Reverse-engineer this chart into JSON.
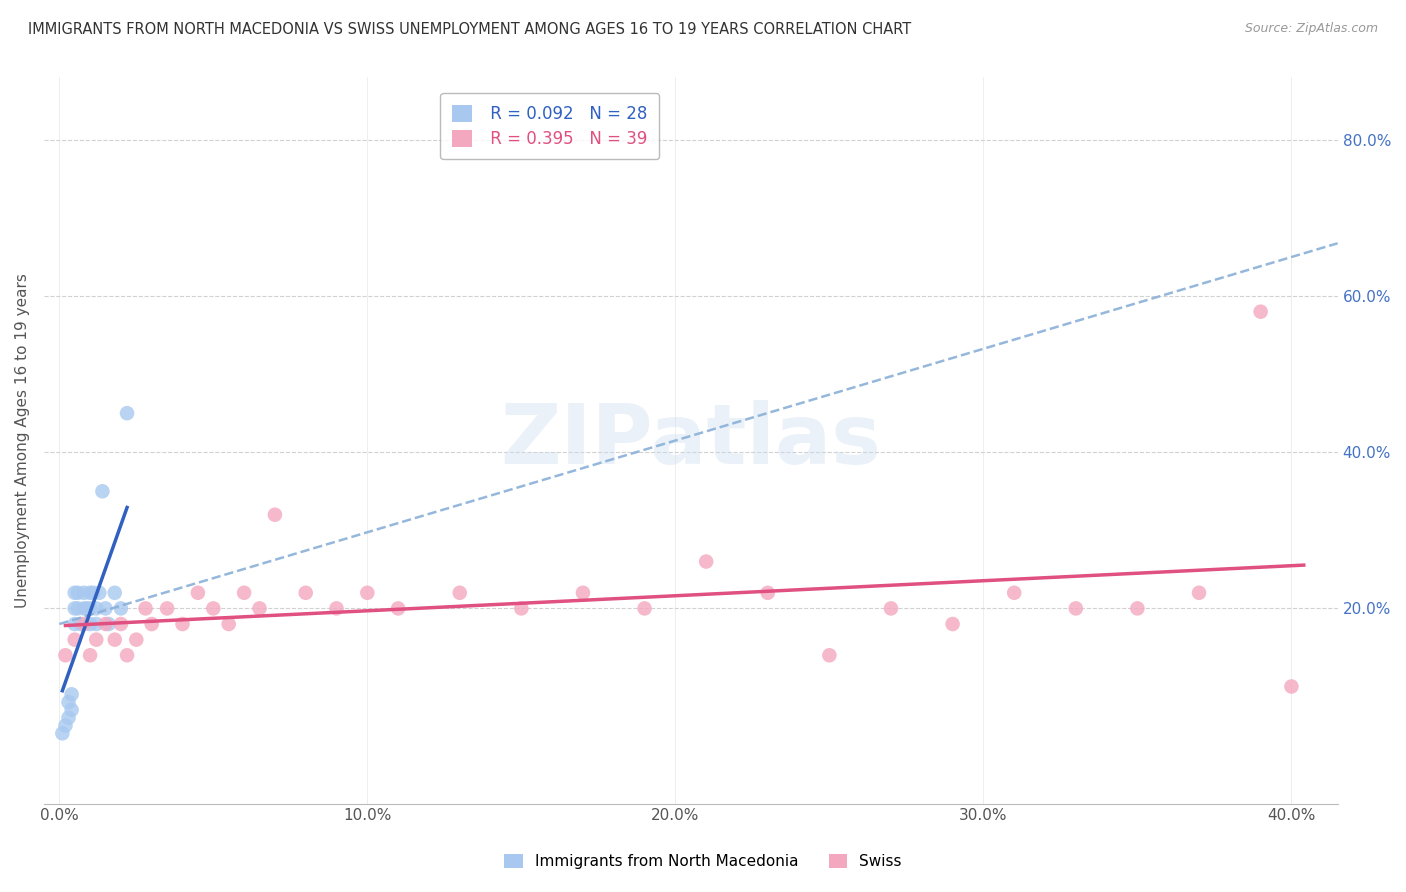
{
  "title": "IMMIGRANTS FROM NORTH MACEDONIA VS SWISS UNEMPLOYMENT AMONG AGES 16 TO 19 YEARS CORRELATION CHART",
  "source": "Source: ZipAtlas.com",
  "xlabel_ticks": [
    "0.0%",
    "10.0%",
    "20.0%",
    "30.0%",
    "40.0%"
  ],
  "ylabel_ticks_right": [
    "80.0%",
    "60.0%",
    "40.0%",
    "20.0%"
  ],
  "ylabel_ticks_right_vals": [
    0.8,
    0.6,
    0.4,
    0.2
  ],
  "xlim": [
    -0.005,
    0.415
  ],
  "ylim": [
    -0.05,
    0.88
  ],
  "ylabel": "Unemployment Among Ages 16 to 19 years",
  "legend_label1": "Immigrants from North Macedonia",
  "legend_label2": "Swiss",
  "R1": 0.092,
  "N1": 28,
  "R2": 0.395,
  "N2": 39,
  "color1": "#a8c8f0",
  "color2": "#f4a8c0",
  "trendline_color1": "#3060c0",
  "trendline_color2": "#e05080",
  "trendline_dashed_color": "#8ab0d8",
  "watermark": "ZIPatlas",
  "scatter1_x": [
    0.001,
    0.002,
    0.003,
    0.003,
    0.004,
    0.004,
    0.005,
    0.005,
    0.005,
    0.006,
    0.006,
    0.007,
    0.008,
    0.008,
    0.009,
    0.01,
    0.01,
    0.01,
    0.011,
    0.012,
    0.012,
    0.013,
    0.014,
    0.015,
    0.016,
    0.018,
    0.02,
    0.022
  ],
  "scatter1_y": [
    0.04,
    0.05,
    0.06,
    0.08,
    0.07,
    0.09,
    0.2,
    0.22,
    0.18,
    0.2,
    0.22,
    0.18,
    0.2,
    0.22,
    0.2,
    0.22,
    0.18,
    0.2,
    0.22,
    0.2,
    0.18,
    0.22,
    0.35,
    0.2,
    0.18,
    0.22,
    0.2,
    0.45
  ],
  "scatter2_x": [
    0.002,
    0.005,
    0.008,
    0.01,
    0.012,
    0.015,
    0.018,
    0.02,
    0.022,
    0.025,
    0.028,
    0.03,
    0.035,
    0.04,
    0.045,
    0.05,
    0.055,
    0.06,
    0.065,
    0.07,
    0.08,
    0.09,
    0.1,
    0.11,
    0.13,
    0.15,
    0.17,
    0.19,
    0.21,
    0.23,
    0.25,
    0.27,
    0.29,
    0.31,
    0.33,
    0.35,
    0.37,
    0.39,
    0.4
  ],
  "scatter2_y": [
    0.14,
    0.16,
    0.18,
    0.14,
    0.16,
    0.18,
    0.16,
    0.18,
    0.14,
    0.16,
    0.2,
    0.18,
    0.2,
    0.18,
    0.22,
    0.2,
    0.18,
    0.22,
    0.2,
    0.32,
    0.22,
    0.2,
    0.22,
    0.2,
    0.22,
    0.2,
    0.22,
    0.2,
    0.26,
    0.22,
    0.14,
    0.2,
    0.18,
    0.22,
    0.2,
    0.2,
    0.22,
    0.58,
    0.1
  ],
  "background_color": "#ffffff",
  "grid_color": "#cccccc",
  "ytick_color": "#4472c4",
  "xtick_color": "#555555"
}
